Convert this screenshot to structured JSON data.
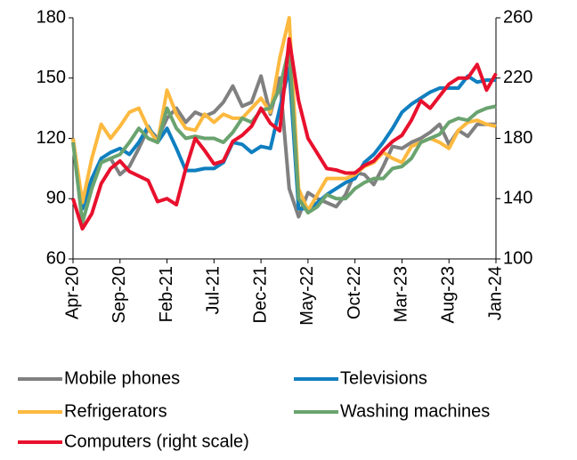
{
  "chart_data": {
    "type": "line",
    "categories": [
      "Apr-20",
      null,
      null,
      null,
      null,
      "Sep-20",
      null,
      null,
      null,
      null,
      "Feb-21",
      null,
      null,
      null,
      null,
      "Jul-21",
      null,
      null,
      null,
      null,
      "Dec-21",
      null,
      null,
      null,
      null,
      "May-22",
      null,
      null,
      null,
      null,
      "Oct-22",
      null,
      null,
      null,
      null,
      "Mar-23",
      null,
      null,
      null,
      null,
      "Aug-23",
      null,
      null,
      null,
      null,
      "Jan-24"
    ],
    "ylim": [
      60,
      180
    ],
    "yticks": [
      60,
      90,
      120,
      150,
      180
    ],
    "y2lim": [
      100,
      260
    ],
    "y2ticks": [
      100,
      140,
      180,
      220,
      260
    ],
    "series": [
      {
        "name": "Mobile phones",
        "color": "#808080",
        "values": [
          120,
          85,
          100,
          108,
          110,
          102,
          106,
          115,
          125,
          120,
          130,
          135,
          128,
          133,
          131,
          133,
          138,
          146,
          136,
          138,
          151,
          132,
          150,
          95,
          81,
          93,
          90,
          88,
          86,
          92,
          103,
          102,
          97,
          106,
          116,
          115,
          118,
          120,
          123,
          127,
          117,
          124,
          121,
          127,
          127,
          127
        ]
      },
      {
        "name": "Televisions",
        "color": "#0f7fc0",
        "values": [
          120,
          85,
          100,
          110,
          113,
          115,
          112,
          118,
          126,
          118,
          125,
          115,
          104,
          104,
          105,
          105,
          108,
          118,
          117,
          113,
          116,
          115,
          135,
          155,
          85,
          85,
          88,
          92,
          95,
          98,
          100,
          108,
          112,
          118,
          125,
          133,
          137,
          140,
          143,
          145,
          145,
          145,
          151,
          148,
          149,
          149
        ]
      },
      {
        "name": "Refrigerators",
        "color": "#fdb93f",
        "values": [
          120,
          88,
          110,
          127,
          120,
          126,
          133,
          135,
          125,
          118,
          144,
          132,
          125,
          124,
          132,
          128,
          132,
          130,
          130,
          135,
          140,
          133,
          160,
          180,
          95,
          84,
          92,
          100,
          100,
          100,
          102,
          106,
          108,
          113,
          110,
          108,
          116,
          118,
          120,
          118,
          115,
          124,
          128,
          129,
          127,
          126
        ]
      },
      {
        "name": "Washing machines",
        "color": "#6aa36f",
        "values": [
          118,
          78,
          95,
          108,
          110,
          112,
          118,
          125,
          120,
          118,
          135,
          125,
          120,
          121,
          120,
          120,
          118,
          123,
          130,
          128,
          134,
          135,
          145,
          165,
          90,
          83,
          86,
          92,
          90,
          90,
          95,
          98,
          100,
          100,
          105,
          106,
          110,
          118,
          120,
          122,
          128,
          130,
          129,
          133,
          135,
          136
        ]
      },
      {
        "name": "Computers (right scale)",
        "color": "#e8112d",
        "axis": "y2",
        "values": [
          140,
          120,
          130,
          150,
          160,
          165,
          158,
          155,
          152,
          138,
          140,
          136,
          160,
          180,
          172,
          163,
          165,
          178,
          182,
          188,
          200,
          190,
          185,
          246,
          205,
          180,
          170,
          160,
          159,
          157,
          157,
          162,
          165,
          172,
          178,
          182,
          192,
          205,
          200,
          208,
          216,
          220,
          220,
          229,
          212,
          223
        ]
      }
    ]
  }
}
